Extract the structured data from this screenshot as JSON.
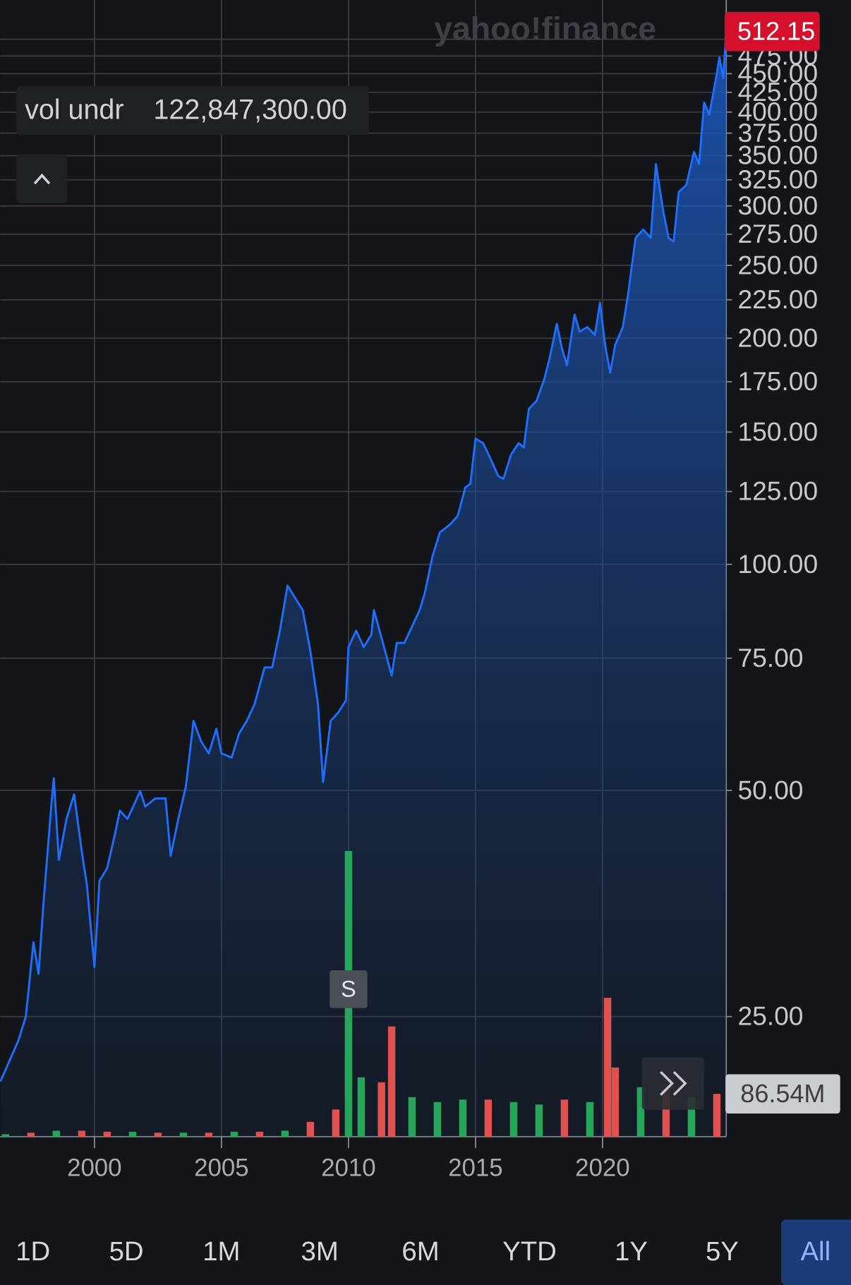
{
  "chart_data": {
    "type": "area",
    "logo": "yahoo!finance",
    "y_scale": "log",
    "grid": true,
    "xlim": [
      1996.29,
      2024.87
    ],
    "xticks": [
      2000,
      2005,
      2010,
      2015,
      2020
    ],
    "ylim": [
      17.3,
      564
    ],
    "yticks": [
      {
        "value": 25,
        "label": "25.00"
      },
      {
        "value": 50,
        "label": "50.00"
      },
      {
        "value": 75,
        "label": "75.00"
      },
      {
        "value": 100,
        "label": "100.00"
      },
      {
        "value": 125,
        "label": "125.00"
      },
      {
        "value": 150,
        "label": "150.00"
      },
      {
        "value": 175,
        "label": "175.00"
      },
      {
        "value": 200,
        "label": "200.00"
      },
      {
        "value": 225,
        "label": "225.00"
      },
      {
        "value": 250,
        "label": "250.00"
      },
      {
        "value": 275,
        "label": "275.00"
      },
      {
        "value": 300,
        "label": "300.00"
      },
      {
        "value": 325,
        "label": "325.00"
      },
      {
        "value": 350,
        "label": "350.00"
      },
      {
        "value": 375,
        "label": "375.00"
      },
      {
        "value": 400,
        "label": "400.00"
      },
      {
        "value": 425,
        "label": "425.00"
      },
      {
        "value": 450,
        "label": "450.00"
      },
      {
        "value": 475,
        "label": "475.00"
      },
      {
        "value": 500,
        "label": "500.00"
      }
    ],
    "y2lim": [
      0,
      2300000000
    ],
    "series": [
      {
        "name": "price",
        "color": "#1f6fff",
        "x": [
          1996.3,
          1997.0,
          1997.3,
          1997.6,
          1997.8,
          1998.0,
          1998.3,
          1998.4,
          1998.6,
          1998.9,
          1999.2,
          1999.5,
          1999.7,
          2000.0,
          2000.2,
          2000.5,
          2000.8,
          2001.0,
          2001.3,
          2001.8,
          2002.0,
          2002.4,
          2002.8,
          2003.0,
          2003.3,
          2003.6,
          2003.9,
          2004.2,
          2004.5,
          2004.8,
          2005.0,
          2005.4,
          2005.7,
          2006.0,
          2006.3,
          2006.7,
          2007.0,
          2007.3,
          2007.6,
          2007.9,
          2008.2,
          2008.5,
          2008.8,
          2009.0,
          2009.3,
          2009.6,
          2009.9,
          2010.0,
          2010.3,
          2010.6,
          2010.9,
          2011.0,
          2011.4,
          2011.7,
          2011.9,
          2012.2,
          2012.5,
          2012.8,
          2013.0,
          2013.3,
          2013.6,
          2014.0,
          2014.3,
          2014.6,
          2014.8,
          2015.0,
          2015.3,
          2015.6,
          2015.9,
          2016.1,
          2016.4,
          2016.7,
          2016.9,
          2017.1,
          2017.4,
          2017.7,
          2017.9,
          2018.2,
          2018.4,
          2018.6,
          2018.9,
          2019.1,
          2019.4,
          2019.7,
          2019.9,
          2020.1,
          2020.3,
          2020.5,
          2020.8,
          2021.0,
          2021.3,
          2021.6,
          2021.9,
          2022.1,
          2022.4,
          2022.6,
          2022.8,
          2023.0,
          2023.3,
          2023.6,
          2023.8,
          2024.0,
          2024.2,
          2024.5,
          2024.6,
          2024.75,
          2024.87
        ],
        "values": [
          20.5,
          23.2,
          25,
          31.4,
          28.5,
          35.6,
          47.6,
          51.9,
          40.4,
          45.8,
          49.4,
          41.5,
          37.5,
          29.1,
          37.9,
          39.4,
          43.6,
          47,
          45.8,
          49.9,
          47.6,
          48.8,
          48.8,
          40.9,
          45.8,
          50.6,
          61.9,
          58.1,
          56,
          60.4,
          56,
          55.3,
          59.6,
          61.9,
          65.1,
          72.9,
          72.9,
          81.6,
          93.7,
          90.2,
          86.9,
          76.6,
          65.1,
          51.3,
          61.9,
          63.5,
          65.9,
          77.6,
          81.6,
          77.6,
          80.6,
          86.9,
          77.6,
          71.1,
          78.6,
          78.6,
          82.6,
          86.9,
          91.4,
          102.3,
          110.3,
          113,
          116,
          126.6,
          128,
          147,
          145,
          138,
          131,
          130,
          140,
          145,
          143,
          161,
          165,
          176,
          187,
          209,
          194,
          184,
          215,
          204,
          207,
          202,
          223,
          196,
          180,
          196,
          207,
          228,
          272,
          279,
          272,
          341,
          294,
          272,
          269,
          313,
          320,
          354,
          341,
          412,
          397,
          450,
          473,
          444,
          512.15
        ]
      },
      {
        "name": "volume",
        "axis": "y2",
        "x": [
          1996.5,
          1997.5,
          1998.5,
          1999.5,
          2000.5,
          2001.5,
          2002.5,
          2003.5,
          2004.5,
          2005.5,
          2006.5,
          2007.5,
          2008.5,
          2009.5,
          2010.0,
          2010.5,
          2011.3,
          2011.7,
          2012.5,
          2013.5,
          2014.5,
          2015.5,
          2016.5,
          2017.5,
          2018.5,
          2019.5,
          2020.2,
          2020.5,
          2021.5,
          2022.5,
          2023.5,
          2024.5
        ],
        "values": [
          5000000,
          8000000,
          12000000,
          12000000,
          10000000,
          10000000,
          8000000,
          8000000,
          8000000,
          10000000,
          10000000,
          12000000,
          30000000,
          55000000,
          578000000,
          120000000,
          110000000,
          223000000,
          80000000,
          70000000,
          75000000,
          75000000,
          70000000,
          65000000,
          75000000,
          70000000,
          281000000,
          140000000,
          100000000,
          95000000,
          80000000,
          86540000
        ],
        "colors": [
          "#26a65b",
          "#e0524f",
          "#26a65b",
          "#e0524f",
          "#e0524f",
          "#26a65b",
          "#e0524f",
          "#26a65b",
          "#e0524f",
          "#26a65b",
          "#e0524f",
          "#26a65b",
          "#e0524f",
          "#e0524f",
          "#26a65b",
          "#26a65b",
          "#e0524f",
          "#e0524f",
          "#26a65b",
          "#26a65b",
          "#26a65b",
          "#e0524f",
          "#26a65b",
          "#26a65b",
          "#e0524f",
          "#26a65b",
          "#e0524f",
          "#e0524f",
          "#26a65b",
          "#e0524f",
          "#26a65b",
          "#e0524f"
        ]
      }
    ],
    "last_price": {
      "value": 512.15,
      "label": "512.15"
    },
    "volume_label": {
      "value": 86540000,
      "label": "86.54M"
    },
    "hover": {
      "label": "vol undr",
      "value": 122847300,
      "value_label": "122,847,300.00"
    },
    "events": [
      {
        "x": 2010,
        "label": "S"
      }
    ],
    "ranges": [
      "1D",
      "5D",
      "1M",
      "3M",
      "6M",
      "YTD",
      "1Y",
      "5Y",
      "All"
    ],
    "selected_range": 8
  }
}
